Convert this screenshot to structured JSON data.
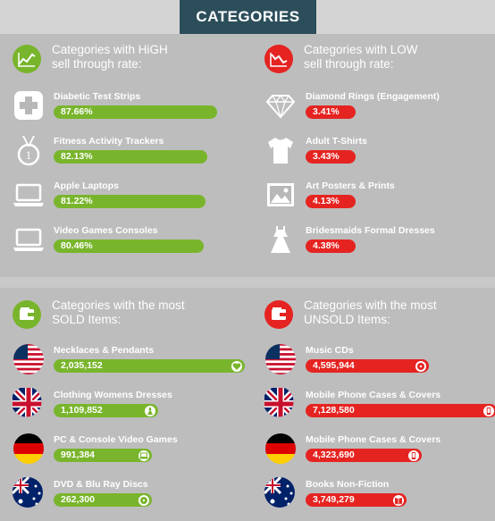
{
  "header": {
    "title": "CATEGORIES"
  },
  "colors": {
    "green": "#79b52c",
    "red": "#e52421",
    "header_bg": "#2c4e5b"
  },
  "chart_data": [
    {
      "type": "bar",
      "title": "Categories with HiGH\nsell through rate:",
      "unit": "%",
      "categories": [
        "Diabetic Test Strips",
        "Fitness Activity Trackers",
        "Apple Laptops",
        "Video Games Consoles"
      ],
      "values": [
        87.66,
        82.13,
        81.22,
        80.46
      ],
      "display": [
        "87.66%",
        "82.13%",
        "81.22%",
        "80.46%"
      ],
      "icons": [
        "medical-cross-icon",
        "medal-icon",
        "laptop-icon",
        "laptop-icon"
      ],
      "end_icons": [
        "",
        "",
        "",
        ""
      ],
      "color": "#79b52c",
      "section_icon": "trend-up-icon"
    },
    {
      "type": "bar",
      "title": "Categories with LOW\nsell through rate:",
      "unit": "%",
      "categories": [
        "Diamond Rings (Engagement)",
        "Adult T-Shirts",
        "Art Posters & Prints",
        "Bridesmaids Formal Dresses"
      ],
      "values": [
        3.41,
        3.43,
        4.13,
        4.38
      ],
      "display": [
        "3.41%",
        "3.43%",
        "4.13%",
        "4.38%"
      ],
      "icons": [
        "diamond-icon",
        "tshirt-icon",
        "picture-icon",
        "dress-icon"
      ],
      "end_icons": [
        "",
        "",
        "",
        ""
      ],
      "color": "#e52421",
      "section_icon": "trend-down-icon"
    },
    {
      "type": "bar",
      "title": "Categories with the most\nSOLD Items:",
      "unit": "items",
      "categories": [
        "Necklaces & Pendants",
        "Clothing Womens Dresses",
        "PC & Console Video Games",
        "DVD & Blu Ray Discs"
      ],
      "values": [
        2035152,
        1109852,
        991384,
        262300
      ],
      "display": [
        "2,035,152",
        "1,109,852",
        "991,384",
        "262,300"
      ],
      "icons": [
        "usa-flag-icon",
        "uk-flag-icon",
        "germany-flag-icon",
        "australia-flag-icon"
      ],
      "end_icons": [
        "heart-icon",
        "dress-icon",
        "laptop-icon",
        "disc-icon"
      ],
      "color": "#79b52c",
      "section_icon": "wallet-icon"
    },
    {
      "type": "bar",
      "title": "Categories with the most\nUNSOLD Items:",
      "unit": "items",
      "categories": [
        "Music CDs",
        "Mobile Phone Cases & Covers",
        "Mobile Phone Cases & Covers",
        "Books Non-Fiction"
      ],
      "values": [
        4595944,
        7128580,
        4323690,
        3749279
      ],
      "display": [
        "4,595,944",
        "7,128,580",
        "4,323,690",
        "3,749,279"
      ],
      "icons": [
        "usa-flag-icon",
        "uk-flag-icon",
        "germany-flag-icon",
        "australia-flag-icon"
      ],
      "end_icons": [
        "disc-icon",
        "phone-icon",
        "phone-icon",
        "book-icon"
      ],
      "color": "#e52421",
      "section_icon": "wallet-icon"
    }
  ]
}
